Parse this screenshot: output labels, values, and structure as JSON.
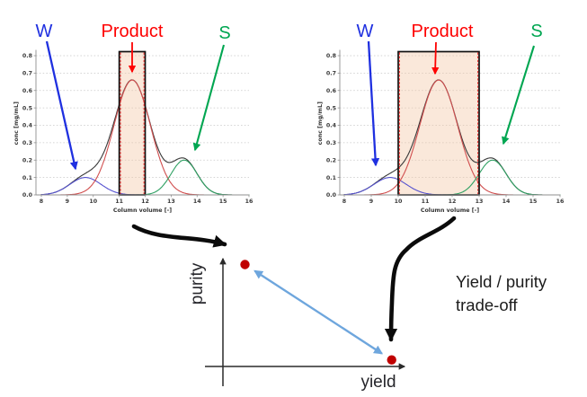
{
  "note": {
    "line1": "Yield / purity",
    "line2": "trade-off"
  },
  "chart_data": [
    {
      "type": "line",
      "title": "",
      "xlabel": "Column volume [-]",
      "ylabel": "conc [mg/mL]",
      "xlim": [
        8,
        16
      ],
      "ylim": [
        0,
        0.8
      ],
      "xticks": [
        8,
        9,
        10,
        11,
        12,
        13,
        14,
        15,
        16
      ],
      "yticks": [
        0,
        0.1,
        0.2,
        0.3,
        0.4,
        0.5,
        0.6,
        0.7,
        0.8
      ],
      "grid": "horizontal-dotted",
      "legend": "none",
      "series": [
        {
          "name": "W",
          "kind": "gaussian",
          "color": "#5552cf",
          "label_color": "#1f30e0",
          "center": 9.7,
          "sigma": 0.6,
          "peak": 0.1
        },
        {
          "name": "Product",
          "kind": "gaussian",
          "color": "#d14f4f",
          "label_color": "#fe0000",
          "center": 11.5,
          "sigma": 0.7,
          "peak": 0.66
        },
        {
          "name": "S",
          "kind": "gaussian",
          "color": "#2ea062",
          "label_color": "#00a651",
          "center": 13.5,
          "sigma": 0.5,
          "peak": 0.2
        },
        {
          "name": "Total",
          "kind": "sum",
          "color": "#383838"
        }
      ],
      "collection_window": {
        "from": 11,
        "to": 12,
        "fill": "#f3c9a8",
        "border": "#101010",
        "edge_dash_color": "#ff2020"
      }
    },
    {
      "type": "line",
      "title": "",
      "xlabel": "Column volume [-]",
      "ylabel": "conc [mg/mL]",
      "xlim": [
        8,
        16
      ],
      "ylim": [
        0,
        0.8
      ],
      "xticks": [
        8,
        9,
        10,
        11,
        12,
        13,
        14,
        15,
        16
      ],
      "yticks": [
        0,
        0.1,
        0.2,
        0.3,
        0.4,
        0.5,
        0.6,
        0.7,
        0.8
      ],
      "grid": "horizontal-dotted",
      "legend": "none",
      "series": [
        {
          "name": "W",
          "kind": "gaussian",
          "color": "#5552cf",
          "label_color": "#1f30e0",
          "center": 9.7,
          "sigma": 0.6,
          "peak": 0.1
        },
        {
          "name": "Product",
          "kind": "gaussian",
          "color": "#d14f4f",
          "label_color": "#fe0000",
          "center": 11.5,
          "sigma": 0.7,
          "peak": 0.66
        },
        {
          "name": "S",
          "kind": "gaussian",
          "color": "#2ea062",
          "label_color": "#00a651",
          "center": 13.5,
          "sigma": 0.5,
          "peak": 0.2
        },
        {
          "name": "Total",
          "kind": "sum",
          "color": "#383838"
        }
      ],
      "collection_window": {
        "from": 10,
        "to": 13,
        "fill": "#f3c9a8",
        "border": "#101010",
        "edge_dash_color": "#ff2020"
      }
    },
    {
      "type": "scatter",
      "xlabel": "yield",
      "ylabel": "purity",
      "points": [
        {
          "x": 0.12,
          "y": 0.93,
          "color": "#c00000"
        },
        {
          "x": 0.92,
          "y": 0.06,
          "color": "#c00000"
        }
      ],
      "connector": {
        "style": "double-headed-arrow",
        "color": "#6ea6dd"
      }
    }
  ]
}
